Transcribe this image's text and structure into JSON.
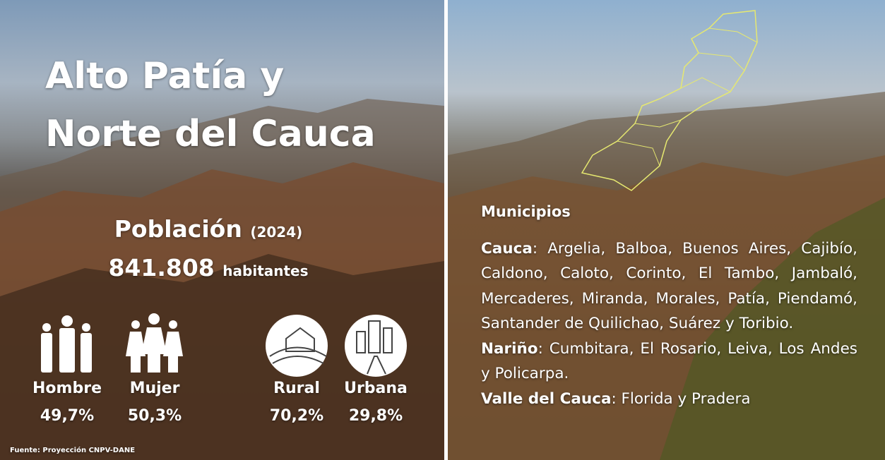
{
  "title": {
    "line1": "Alto Patía y",
    "line2": "Norte del Cauca"
  },
  "population": {
    "label": "Población",
    "year": "(2024)",
    "number": "841.808",
    "unit": "habitantes"
  },
  "stats": [
    {
      "label": "Hombre",
      "value": "49,7%"
    },
    {
      "label": "Mujer",
      "value": "50,3%"
    },
    {
      "label": "Rural",
      "value": "70,2%"
    },
    {
      "label": "Urbana",
      "value": "29,8%"
    }
  ],
  "source": "Fuente: Proyección CNPV-DANE",
  "municipios": {
    "heading": "Municipios",
    "groups": [
      {
        "department": "Cauca",
        "list": ": Argelia, Balboa, Buenos Aires, Cajibío, Caldono, Caloto, Corinto, El Tambo, Jambaló, Mercaderes, Miranda, Morales, Patía, Piendamó, Santander de Quilichao, Suárez y Toribio."
      },
      {
        "department": "Nariño",
        "list": ": Cumbitara, El Rosario, Leiva, Los Andes y Policarpa."
      },
      {
        "department": "Valle del Cauca",
        "list": ": Florida y Pradera"
      }
    ]
  }
}
